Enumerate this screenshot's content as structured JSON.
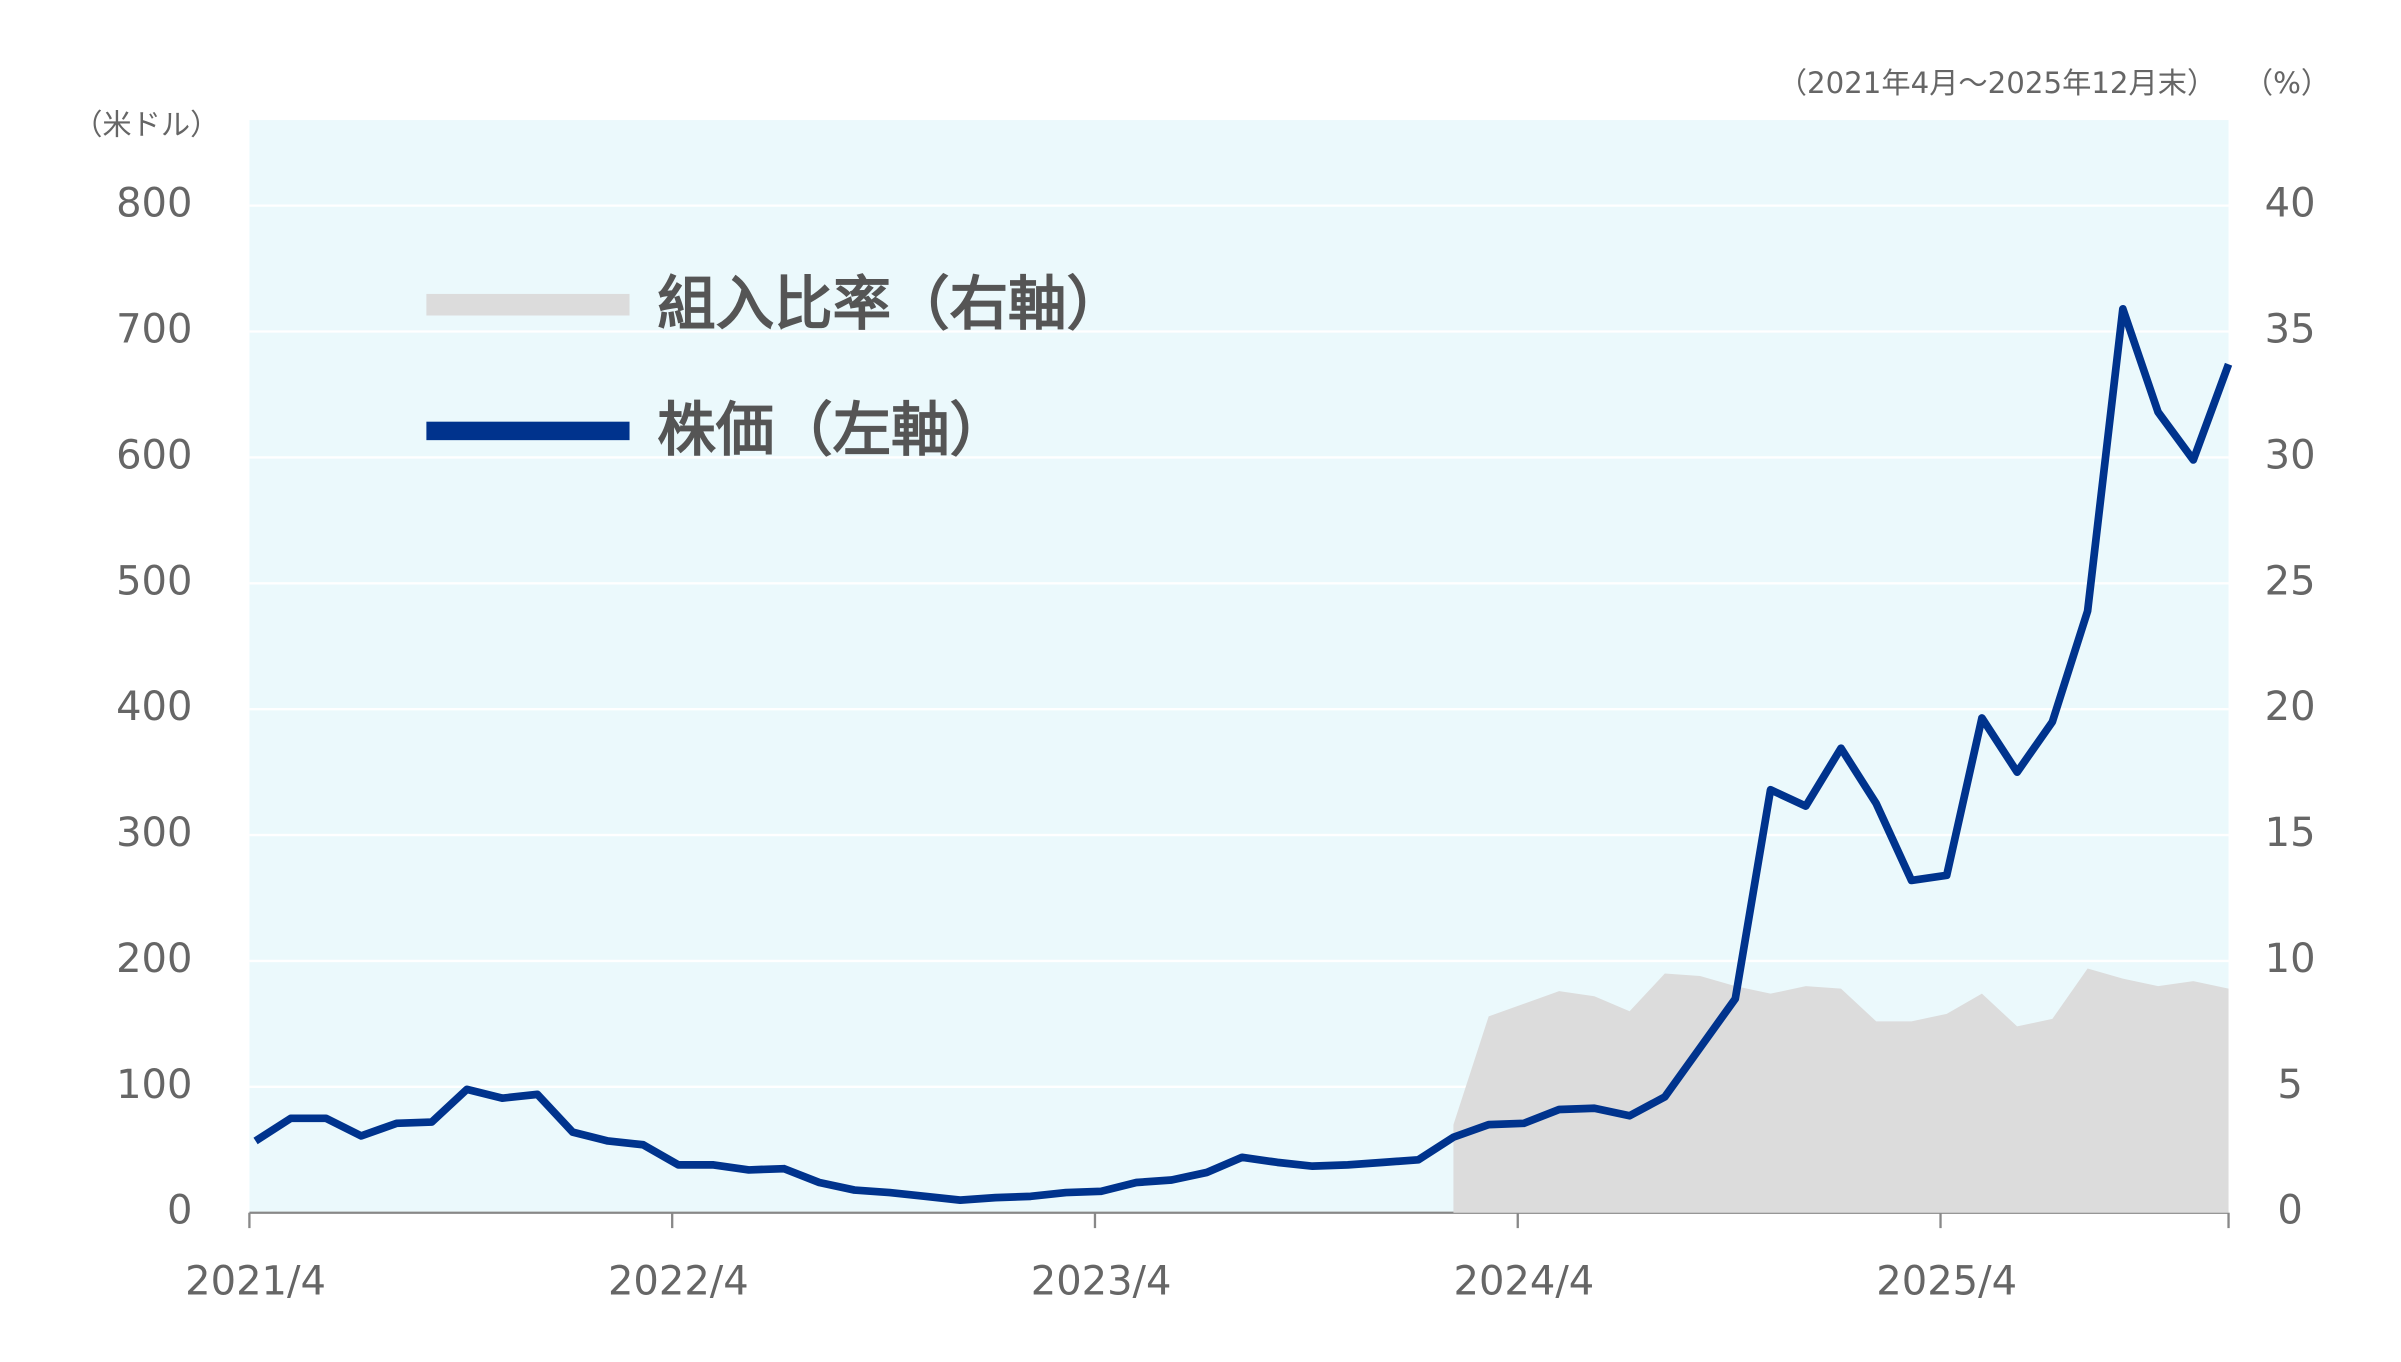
{
  "chart_data": {
    "type": "line",
    "y_unit_label": "（米ドル）",
    "period_label": "（2021年4月～2025年12月末）",
    "y2_unit_label": "（%）",
    "categories": [
      "2021/4",
      null,
      null,
      null,
      null,
      null,
      null,
      null,
      null,
      null,
      null,
      null,
      "2022/4",
      null,
      null,
      null,
      null,
      null,
      null,
      null,
      null,
      null,
      null,
      null,
      "2023/4",
      null,
      null,
      null,
      null,
      null,
      null,
      null,
      null,
      null,
      null,
      null,
      "2024/4",
      null,
      null,
      null,
      null,
      null,
      null,
      null,
      null,
      null,
      null,
      null,
      "2025/4",
      null,
      null,
      null,
      null,
      null,
      null,
      null,
      null
    ],
    "series": [
      {
        "name": "組入比率（右軸）",
        "color": "#dcdcdc",
        "axis": "y2",
        "kind": "area",
        "values": [
          null,
          null,
          null,
          null,
          null,
          null,
          null,
          null,
          null,
          null,
          null,
          null,
          null,
          null,
          null,
          null,
          null,
          null,
          null,
          null,
          null,
          null,
          null,
          null,
          null,
          null,
          null,
          null,
          null,
          null,
          null,
          null,
          null,
          null,
          3.5,
          7.8,
          8.3,
          8.8,
          8.6,
          8.0,
          9.5,
          9.4,
          9.0,
          8.7,
          9.0,
          8.9,
          7.6,
          7.6,
          7.9,
          8.7,
          7.4,
          7.7,
          9.7,
          9.3,
          9.0,
          9.2,
          8.9
        ]
      },
      {
        "name": "株価（左軸）",
        "color": "#00338d",
        "kind": "line",
        "values": [
          57,
          75,
          75,
          61,
          71,
          72,
          98,
          91,
          94,
          64,
          57,
          54,
          38,
          38,
          34,
          35,
          24,
          18,
          16,
          13,
          10,
          12,
          13,
          16,
          17,
          24,
          26,
          32,
          44,
          40,
          37,
          38,
          40,
          42,
          60,
          70,
          71,
          82,
          83,
          77,
          92,
          131,
          170,
          336,
          323,
          369,
          325,
          264,
          268,
          393,
          350,
          390,
          478,
          718,
          636,
          598,
          674
        ]
      }
    ],
    "ylim": [
      0,
      868
    ],
    "yticks": [
      0,
      100,
      200,
      300,
      400,
      500,
      600,
      700,
      800
    ],
    "y2lim": [
      0,
      43.4
    ],
    "y2ticks": [
      0,
      5,
      10,
      15,
      20,
      25,
      30,
      35,
      40
    ],
    "grid": true,
    "background": "#ebf9fc"
  }
}
